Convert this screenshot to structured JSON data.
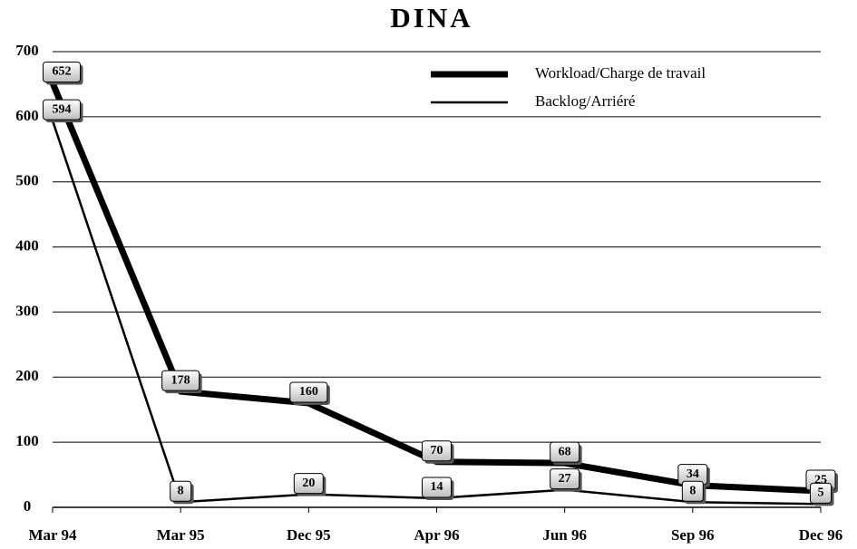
{
  "chart_data": {
    "type": "line",
    "title": "DINA",
    "categories": [
      "Mar 94",
      "Mar 95",
      "Dec 95",
      "Apr 96",
      "Jun 96",
      "Sep 96",
      "Dec 96"
    ],
    "series": [
      {
        "name": "Workload/Charge de travail",
        "color": "#000000",
        "width": 7,
        "values": [
          652,
          178,
          160,
          70,
          68,
          34,
          25
        ]
      },
      {
        "name": "Backlog/Arriéré",
        "color": "#000000",
        "width": 2.5,
        "values": [
          594,
          8,
          20,
          14,
          27,
          8,
          5
        ]
      }
    ],
    "ylim": [
      0,
      700
    ],
    "yticks": [
      0,
      100,
      200,
      300,
      400,
      500,
      600,
      700
    ],
    "grid": true,
    "legend": "top-right"
  }
}
